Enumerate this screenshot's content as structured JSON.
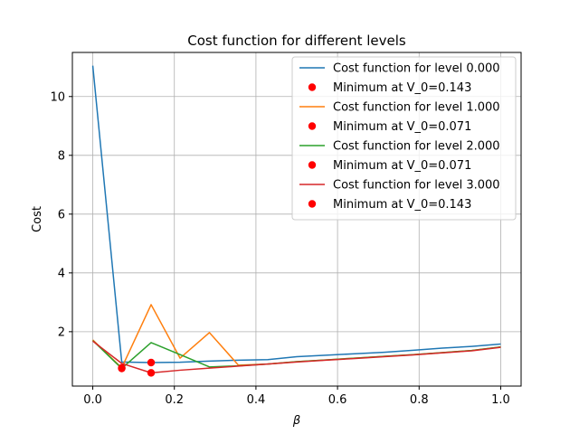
{
  "chart_data": {
    "type": "line",
    "title": "Cost function for different levels",
    "xlabel": "β",
    "ylabel": "Cost",
    "xlim": [
      -0.05,
      1.05
    ],
    "ylim": [
      0.15,
      11.5
    ],
    "xticks": [
      0.0,
      0.2,
      0.4,
      0.6,
      0.8,
      1.0
    ],
    "xtick_labels": [
      "0.0",
      "0.2",
      "0.4",
      "0.6",
      "0.8",
      "1.0"
    ],
    "yticks": [
      2,
      4,
      6,
      8,
      10
    ],
    "ytick_labels": [
      "2",
      "4",
      "6",
      "8",
      "10"
    ],
    "grid": true,
    "legend_position": "top-right",
    "series": [
      {
        "name": "Cost function for level 0.000",
        "color": "#1f77b4",
        "x": [
          0.0,
          0.071,
          0.143,
          0.214,
          0.286,
          0.357,
          0.429,
          0.5,
          0.571,
          0.643,
          0.714,
          0.786,
          0.857,
          0.929,
          1.0
        ],
        "y": [
          11.05,
          0.97,
          0.95,
          0.96,
          1.0,
          1.03,
          1.05,
          1.15,
          1.2,
          1.25,
          1.3,
          1.37,
          1.44,
          1.5,
          1.58
        ]
      },
      {
        "name": "Cost function for level 1.000",
        "color": "#ff7f0e",
        "x": [
          0.0,
          0.071,
          0.143,
          0.214,
          0.286,
          0.357,
          0.429,
          0.5,
          0.571,
          0.643,
          0.714,
          0.786,
          0.857,
          0.929,
          1.0
        ],
        "y": [
          1.72,
          0.77,
          2.92,
          1.1,
          1.97,
          0.86,
          0.9,
          0.98,
          1.04,
          1.1,
          1.16,
          1.22,
          1.29,
          1.36,
          1.48
        ]
      },
      {
        "name": "Cost function for level 2.000",
        "color": "#2ca02c",
        "x": [
          0.0,
          0.071,
          0.143,
          0.214,
          0.286,
          0.357,
          0.429,
          0.5,
          0.571,
          0.643,
          0.714,
          0.786,
          0.857,
          0.929,
          1.0
        ],
        "y": [
          1.7,
          0.75,
          1.63,
          1.22,
          0.8,
          0.84,
          0.9,
          0.98,
          1.04,
          1.1,
          1.16,
          1.22,
          1.29,
          1.36,
          1.48
        ]
      },
      {
        "name": "Cost function for level 3.000",
        "color": "#d62728",
        "x": [
          0.0,
          0.071,
          0.143,
          0.214,
          0.286,
          0.357,
          0.429,
          0.5,
          0.571,
          0.643,
          0.714,
          0.786,
          0.857,
          0.929,
          1.0
        ],
        "y": [
          1.68,
          0.92,
          0.6,
          0.69,
          0.76,
          0.83,
          0.9,
          0.97,
          1.03,
          1.09,
          1.15,
          1.21,
          1.28,
          1.35,
          1.47
        ]
      }
    ],
    "minima": [
      {
        "name": "Minimum at V_0=0.143",
        "color": "#ff0000",
        "x": 0.143,
        "y": 0.95
      },
      {
        "name": "Minimum at V_0=0.071",
        "color": "#ff0000",
        "x": 0.071,
        "y": 0.77
      },
      {
        "name": "Minimum at V_0=0.071",
        "color": "#ff0000",
        "x": 0.071,
        "y": 0.75
      },
      {
        "name": "Minimum at V_0=0.143",
        "color": "#ff0000",
        "x": 0.143,
        "y": 0.6
      }
    ],
    "legend_order": [
      {
        "kind": "line",
        "series": 0
      },
      {
        "kind": "point",
        "minimum": 0
      },
      {
        "kind": "line",
        "series": 1
      },
      {
        "kind": "point",
        "minimum": 1
      },
      {
        "kind": "line",
        "series": 2
      },
      {
        "kind": "point",
        "minimum": 2
      },
      {
        "kind": "line",
        "series": 3
      },
      {
        "kind": "point",
        "minimum": 3
      }
    ]
  }
}
